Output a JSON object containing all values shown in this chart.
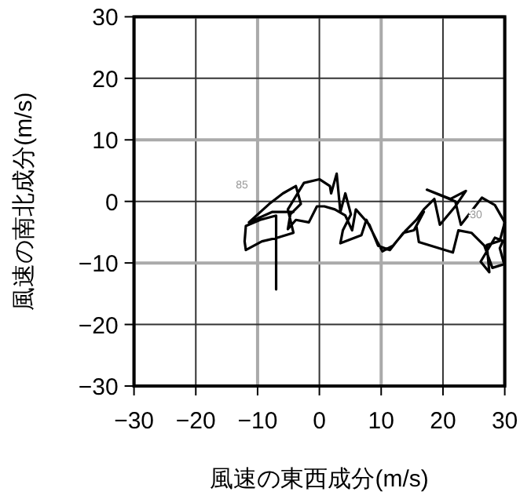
{
  "chart_data": {
    "type": "line",
    "xlabel": "風速の東西成分(m/s)",
    "ylabel": "風速の南北成分(m/s)",
    "xlim": [
      -30,
      30
    ],
    "ylim": [
      -30,
      30
    ],
    "xticks": [
      -30,
      -20,
      -10,
      0,
      10,
      20,
      30
    ],
    "yticks": [
      -30,
      -20,
      -10,
      0,
      10,
      20,
      30
    ],
    "grid": true,
    "marker": "none",
    "line_style": "solid",
    "series": [
      {
        "color": "#000000",
        "x": [
          -7.0,
          -7.0,
          -9.6,
          -11.9,
          -12.1,
          -11.9,
          -9.3,
          -6.8,
          -4.2,
          -4.7,
          -5.1,
          -2.5,
          0.0,
          1.7,
          1.9,
          2.8,
          3.4,
          4.2,
          5.1,
          3.8,
          3.4,
          6.8,
          7.6,
          9.3,
          10.2,
          11.9,
          14.0,
          15.7,
          16.9,
          18.6,
          19.5,
          22.0,
          23.7,
          21.2,
          17.4,
          22.0,
          22.9,
          26.3,
          28.4,
          30.0,
          29.2,
          27.1,
          27.5,
          26.1,
          28.4,
          29.7,
          29.2,
          29.9,
          28.0,
          26.7,
          24.6,
          22.5,
          21.6,
          16.1,
          15.7,
          16.9,
          15.3,
          13.6,
          11.4,
          9.5,
          8.1,
          5.9,
          5.3,
          4.2,
          2.5,
          0.8,
          -0.4,
          -1.7,
          -3.8,
          -5.1,
          -4.7,
          -3.0,
          -3.8,
          -5.9,
          -8.1,
          -11.4,
          -7.6,
          -4.2
        ],
        "values": [
          -14.3,
          -2.3,
          -3.0,
          -4.0,
          -6.5,
          -7.9,
          -6.5,
          -5.9,
          -5.1,
          -3.0,
          -1.3,
          3.0,
          3.6,
          2.5,
          1.3,
          4.5,
          -1.7,
          1.3,
          -2.1,
          -4.7,
          -6.8,
          -5.5,
          -3.0,
          -6.4,
          -8.1,
          -7.2,
          -4.7,
          -3.0,
          -1.3,
          0.4,
          -3.8,
          -0.8,
          1.7,
          0.4,
          1.9,
          0.0,
          -3.8,
          0.6,
          -0.6,
          -3.4,
          -6.4,
          -7.1,
          -11.5,
          -9.8,
          -5.9,
          -6.4,
          -7.6,
          -10.2,
          -10.8,
          -7.2,
          -5.1,
          -4.7,
          -8.3,
          -6.6,
          -4.0,
          -1.7,
          -4.7,
          -5.1,
          -7.9,
          -7.2,
          -3.8,
          -1.3,
          -4.7,
          -2.3,
          -1.3,
          -0.8,
          -0.8,
          -3.4,
          -3.0,
          -4.5,
          -2.1,
          -0.4,
          2.5,
          1.3,
          -0.4,
          -3.4,
          -1.7,
          -1.7
        ]
      }
    ],
    "annotations": [
      "85",
      "30"
    ]
  }
}
